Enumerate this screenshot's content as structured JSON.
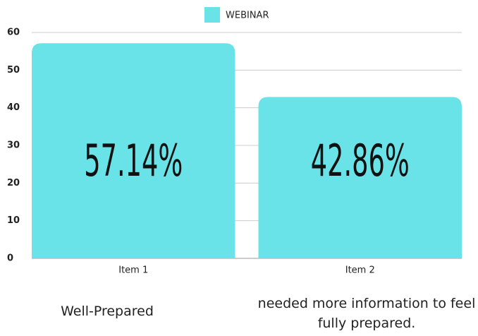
{
  "chart_data": {
    "type": "bar",
    "legend": "WEBINAR",
    "categories": [
      "Item 1",
      "Item 2"
    ],
    "series": [
      {
        "name": "WEBINAR",
        "color": "#6ae3e8",
        "values": [
          57.14,
          42.86
        ],
        "value_labels": [
          "57.14%",
          "42.86%"
        ]
      }
    ],
    "ylim": [
      0,
      60
    ],
    "yticks": [
      0,
      10,
      20,
      30,
      40,
      50,
      60
    ],
    "grid": true,
    "annotations": [
      "Well-Prepared",
      "needed more information to feel fully prepared."
    ]
  }
}
